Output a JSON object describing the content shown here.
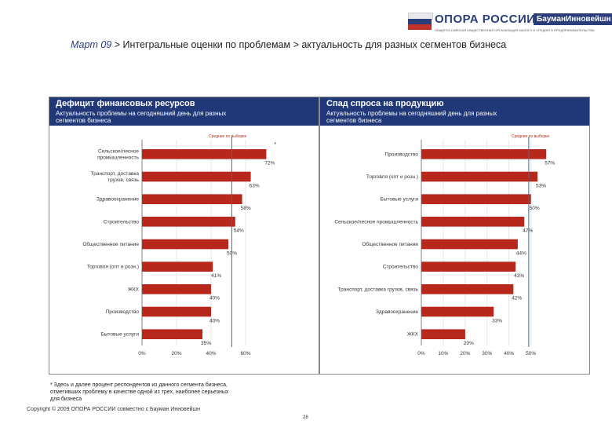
{
  "logo": {
    "text": "ОПОРА РОССИИ",
    "bauman": "БауманИнновейшн",
    "small": "ОБЩЕРОССИЙСКАЯ ОБЩЕСТВЕННАЯ ОРГАНИЗАЦИЯ МАЛОГО И СРЕДНЕГО ПРЕДПРИНИМАТЕЛЬСТВА",
    "colors": [
      "#ffffff",
      "#2a3e7c",
      "#c0302a"
    ]
  },
  "headline": {
    "part1": "Март 09",
    "part2": " > Интегральные оценки по проблемам > актуальность для разных сегментов бизнеса"
  },
  "left_panel": {
    "title": "Дефицит финансовых ресурсов",
    "subtitle_line1": "Актуальность проблемы на сегодняшний день для разных",
    "subtitle_line2": "сегментов бизнеса",
    "reference_label": "Среднее по выборке",
    "star": "*"
  },
  "right_panel": {
    "title": "Спад спроса на продукцию",
    "subtitle_line1": "Актуальность проблемы на сегодняшний день для разных",
    "subtitle_line2": "сегментов бизнеса",
    "reference_label": "Среднее по выборке"
  },
  "chart_data": [
    {
      "type": "bar",
      "orientation": "horizontal",
      "categories": [
        [
          "Сельское/лесное",
          "промышленность"
        ],
        [
          "Транспорт, доставка",
          "грузов, связь"
        ],
        [
          "Здравоохранение"
        ],
        [
          "Строительство"
        ],
        [
          "Общественное питание"
        ],
        [
          "Торговля (опт и розн.)"
        ],
        [
          "ЖКХ"
        ],
        [
          "Производство"
        ],
        [
          "Бытовые услуги"
        ]
      ],
      "values": [
        72,
        63,
        58,
        54,
        50,
        41,
        40,
        40,
        35
      ],
      "labels": [
        "72%",
        "63%",
        "58%",
        "54%",
        "50%",
        "41%",
        "40%",
        "40%",
        "35%"
      ],
      "ticks": [
        0,
        20,
        40,
        60
      ],
      "tick_labels": [
        "0%",
        "20%",
        "40%",
        "60%"
      ],
      "xlim": [
        0,
        80
      ],
      "reference": 52,
      "color": "#b8271c",
      "reference_color": "#3a6aa8",
      "grid": true
    },
    {
      "type": "bar",
      "orientation": "horizontal",
      "categories": [
        [
          "Производство"
        ],
        [
          "Торговля (опт и розн.)"
        ],
        [
          "Бытовые услуги"
        ],
        [
          "Сельское/лесное промышленность"
        ],
        [
          "Общественное питание"
        ],
        [
          "Строительство"
        ],
        [
          "Транспорт, доставка грузов, связь"
        ],
        [
          "Здравоохранение"
        ],
        [
          "ЖКХ"
        ]
      ],
      "values": [
        57,
        53,
        50,
        47,
        44,
        43,
        42,
        33,
        20
      ],
      "labels": [
        "57%",
        "53%",
        "50%",
        "47%",
        "44%",
        "43%",
        "42%",
        "33%",
        "20%"
      ],
      "ticks": [
        0,
        10,
        20,
        30,
        40,
        50
      ],
      "tick_labels": [
        "0%",
        "10%",
        "20%",
        "30%",
        "40%",
        "50%"
      ],
      "xlim": [
        0,
        58
      ],
      "reference": 49,
      "color": "#b8271c",
      "reference_color": "#3a6aa8",
      "grid": true
    }
  ],
  "footnote": {
    "line1": "* Здесь и далее процент респондентов из данного сегмента бизнеса,",
    "line2": "отметивших проблему в качестве одной из трех, наиболее серьезных",
    "line3": "для бизнеса"
  },
  "copyright": "Copyright © 2009 ОПОРА РОССИИ совместно с Бауман Инновейшн",
  "page_number": "28"
}
